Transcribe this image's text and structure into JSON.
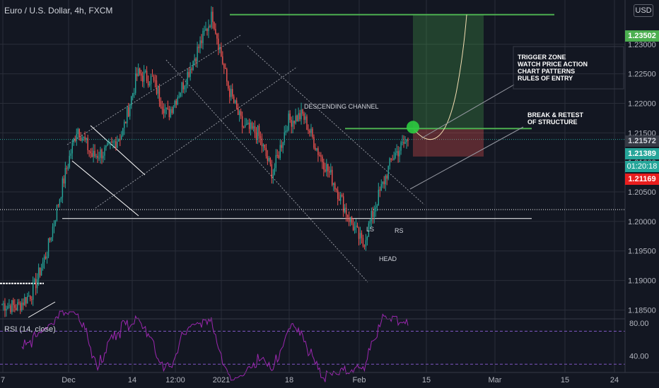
{
  "header": {
    "title": "Euro / U.S. Dollar, 4h, FXCM",
    "currency": "USD"
  },
  "rsi": {
    "label": "RSI (14, close)"
  },
  "colors": {
    "bg": "#131722",
    "up": "#26a69a",
    "down": "#ef5350",
    "grid": "#2a2e39",
    "text": "#b2b5be",
    "rsi": "#9c27b0",
    "target": "#4caf50"
  },
  "price_tags": {
    "target": "1.23502",
    "entry": "1.21572",
    "current": "1.21389",
    "countdown": "01:20:18",
    "stop": "1.21169"
  },
  "annotations": {
    "trigger_zone": [
      "TRIGGER ZONE",
      "WATCH PRICE ACTION",
      "CHART PATTERNS",
      "RULES OF ENTRY"
    ],
    "break_retest": [
      "BREAK & RETEST",
      "OF STRUCTURE"
    ],
    "descending_channel": "DESCENDING CHANNEL",
    "ls": "LS",
    "rs": "RS",
    "head": "HEAD"
  },
  "chart_data": {
    "type": "candlestick",
    "title": "Euro / U.S. Dollar, 4h, FXCM",
    "x_ticks": [
      "7",
      "Dec",
      "14",
      "12:00",
      "2021",
      "18",
      "Feb",
      "15",
      "Mar",
      "15",
      "24"
    ],
    "y_ticks": [
      1.185,
      1.19,
      1.195,
      1.2,
      1.205,
      1.21,
      1.215,
      1.22,
      1.225,
      1.23
    ],
    "y_tick_labels": [
      "1.18500",
      "1.19000",
      "1.19500",
      "1.20000",
      "1.20500",
      "1.21000",
      "1.21500",
      "1.22000",
      "1.22500",
      "1.23000"
    ],
    "ylim": [
      1.1835,
      1.2375
    ],
    "price_path": [
      {
        "date": "Nov 7",
        "close": 1.186
      },
      {
        "date": "Nov 14",
        "close": 1.1855
      },
      {
        "date": "Nov 21",
        "close": 1.188
      },
      {
        "date": "Nov 28",
        "close": 1.195
      },
      {
        "date": "Dec 1",
        "close": 1.206
      },
      {
        "date": "Dec 4",
        "close": 1.216
      },
      {
        "date": "Dec 7",
        "close": 1.211
      },
      {
        "date": "Dec 10",
        "close": 1.212
      },
      {
        "date": "Dec 14",
        "close": 1.215
      },
      {
        "date": "Dec 17",
        "close": 1.225
      },
      {
        "date": "Dec 21",
        "close": 1.224
      },
      {
        "date": "Dec 24",
        "close": 1.218
      },
      {
        "date": "Dec 28",
        "close": 1.223
      },
      {
        "date": "Dec 31",
        "close": 1.229
      },
      {
        "date": "Jan 6",
        "close": 1.235
      },
      {
        "date": "Jan 8",
        "close": 1.223
      },
      {
        "date": "Jan 11",
        "close": 1.216
      },
      {
        "date": "Jan 14",
        "close": 1.215
      },
      {
        "date": "Jan 18",
        "close": 1.208
      },
      {
        "date": "Jan 22",
        "close": 1.217
      },
      {
        "date": "Jan 26",
        "close": 1.218
      },
      {
        "date": "Jan 29",
        "close": 1.212
      },
      {
        "date": "Feb 1",
        "close": 1.207
      },
      {
        "date": "Feb 3",
        "close": 1.201
      },
      {
        "date": "Feb 5",
        "close": 1.196
      },
      {
        "date": "Feb 8",
        "close": 1.204
      },
      {
        "date": "Feb 10",
        "close": 1.211
      },
      {
        "date": "Feb 12",
        "close": 1.2139
      }
    ],
    "levels": {
      "target": 1.23502,
      "entry": 1.21572,
      "current": 1.21389,
      "stop": 1.21169,
      "neckline": 1.2005,
      "support": 1.202
    },
    "rsi": {
      "name": "RSI (14, close)",
      "ylim": [
        20,
        85
      ],
      "y_ticks": [
        40,
        80
      ],
      "y_tick_labels": [
        "40.00",
        "80.00"
      ],
      "bands": [
        70,
        30
      ]
    }
  }
}
